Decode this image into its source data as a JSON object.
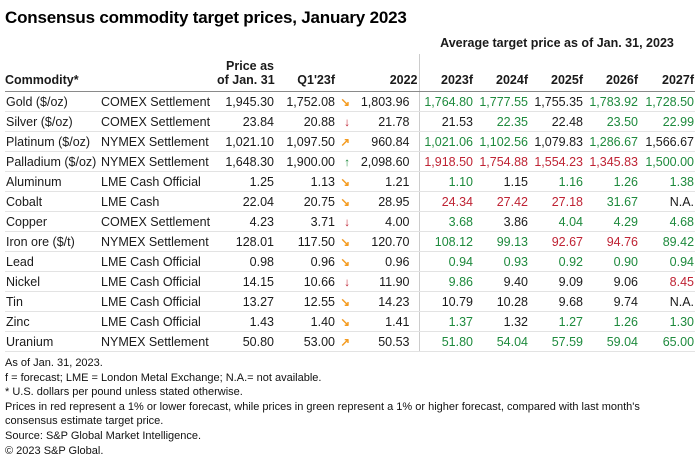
{
  "title": "Consensus commodity target prices, January 2023",
  "colors": {
    "green": "#1e8a3d",
    "red": "#bf2334",
    "orange": "#f49b1f",
    "black": "#1a1a1a",
    "header_rule": "#9b9b9b",
    "row_rule": "#e3e3e3"
  },
  "table": {
    "group_header": "Average target price as of Jan. 31, 2023",
    "commodity_header": "Commodity*",
    "price_header_line1": "Price as",
    "price_header_line2": "of Jan. 31",
    "q1_header": "Q1'23f",
    "y2022_header": "2022",
    "forecast_headers": [
      "2023f",
      "2024f",
      "2025f",
      "2026f",
      "2027f"
    ],
    "arrow_icons": {
      "down-right": {
        "name": "trend-down-right-icon",
        "glyph": "↘",
        "color": "#f49b1f"
      },
      "down": {
        "name": "trend-down-icon",
        "glyph": "↓",
        "color": "#bf2334"
      },
      "up-right": {
        "name": "trend-up-right-icon",
        "glyph": "↗",
        "color": "#f49b1f"
      },
      "up": {
        "name": "trend-up-icon",
        "glyph": "↑",
        "color": "#1e8a3d"
      }
    },
    "rows": [
      {
        "commodity": "Gold ($/oz)",
        "settlement": "COMEX Settlement",
        "price": "1,945.30",
        "q1": "1,752.08",
        "arrow": "down-right",
        "y2022": "1,803.96",
        "forecasts": [
          [
            "1,764.80",
            "green"
          ],
          [
            "1,777.55",
            "green"
          ],
          [
            "1,755.35",
            "black"
          ],
          [
            "1,783.92",
            "green"
          ],
          [
            "1,728.50",
            "green"
          ]
        ]
      },
      {
        "commodity": "Silver ($/oz)",
        "settlement": "COMEX Settlement",
        "price": "23.84",
        "q1": "20.88",
        "arrow": "down",
        "y2022": "21.78",
        "forecasts": [
          [
            "21.53",
            "black"
          ],
          [
            "22.35",
            "green"
          ],
          [
            "22.48",
            "black"
          ],
          [
            "23.50",
            "green"
          ],
          [
            "22.99",
            "green"
          ]
        ]
      },
      {
        "commodity": "Platinum ($/oz)",
        "settlement": "NYMEX Settlement",
        "price": "1,021.10",
        "q1": "1,097.50",
        "arrow": "up-right",
        "y2022": "960.84",
        "forecasts": [
          [
            "1,021.06",
            "green"
          ],
          [
            "1,102.56",
            "green"
          ],
          [
            "1,079.83",
            "black"
          ],
          [
            "1,286.67",
            "green"
          ],
          [
            "1,566.67",
            "black"
          ]
        ]
      },
      {
        "commodity": "Palladium ($/oz)",
        "settlement": "NYMEX Settlement",
        "price": "1,648.30",
        "q1": "1,900.00",
        "arrow": "up",
        "y2022": "2,098.60",
        "forecasts": [
          [
            "1,918.50",
            "red"
          ],
          [
            "1,754.88",
            "red"
          ],
          [
            "1,554.23",
            "red"
          ],
          [
            "1,345.83",
            "red"
          ],
          [
            "1,500.00",
            "green"
          ]
        ]
      },
      {
        "commodity": "Aluminum",
        "settlement": "LME Cash Official",
        "price": "1.25",
        "q1": "1.13",
        "arrow": "down-right",
        "y2022": "1.21",
        "forecasts": [
          [
            "1.10",
            "green"
          ],
          [
            "1.15",
            "black"
          ],
          [
            "1.16",
            "green"
          ],
          [
            "1.26",
            "green"
          ],
          [
            "1.38",
            "green"
          ]
        ]
      },
      {
        "commodity": "Cobalt",
        "settlement": "LME Cash",
        "price": "22.04",
        "q1": "20.75",
        "arrow": "down-right",
        "y2022": "28.95",
        "forecasts": [
          [
            "24.34",
            "red"
          ],
          [
            "27.42",
            "red"
          ],
          [
            "27.18",
            "red"
          ],
          [
            "31.67",
            "green"
          ],
          [
            "N.A.",
            "black"
          ]
        ]
      },
      {
        "commodity": "Copper",
        "settlement": "COMEX Settlement",
        "price": "4.23",
        "q1": "3.71",
        "arrow": "down",
        "y2022": "4.00",
        "forecasts": [
          [
            "3.68",
            "green"
          ],
          [
            "3.86",
            "black"
          ],
          [
            "4.04",
            "green"
          ],
          [
            "4.29",
            "green"
          ],
          [
            "4.68",
            "green"
          ]
        ]
      },
      {
        "commodity": "Iron ore ($/t)",
        "settlement": "NYMEX Settlement",
        "price": "128.01",
        "q1": "117.50",
        "arrow": "down-right",
        "y2022": "120.70",
        "forecasts": [
          [
            "108.12",
            "green"
          ],
          [
            "99.13",
            "green"
          ],
          [
            "92.67",
            "red"
          ],
          [
            "94.76",
            "red"
          ],
          [
            "89.42",
            "green"
          ]
        ]
      },
      {
        "commodity": "Lead",
        "settlement": "LME Cash Official",
        "price": "0.98",
        "q1": "0.96",
        "arrow": "down-right",
        "y2022": "0.96",
        "forecasts": [
          [
            "0.94",
            "green"
          ],
          [
            "0.93",
            "green"
          ],
          [
            "0.92",
            "green"
          ],
          [
            "0.90",
            "green"
          ],
          [
            "0.94",
            "green"
          ]
        ]
      },
      {
        "commodity": "Nickel",
        "settlement": "LME Cash Official",
        "price": "14.15",
        "q1": "10.66",
        "arrow": "down",
        "y2022": "11.90",
        "forecasts": [
          [
            "9.86",
            "green"
          ],
          [
            "9.40",
            "black"
          ],
          [
            "9.09",
            "black"
          ],
          [
            "9.06",
            "black"
          ],
          [
            "8.45",
            "red"
          ]
        ]
      },
      {
        "commodity": "Tin",
        "settlement": "LME Cash Official",
        "price": "13.27",
        "q1": "12.55",
        "arrow": "down-right",
        "y2022": "14.23",
        "forecasts": [
          [
            "10.79",
            "black"
          ],
          [
            "10.28",
            "black"
          ],
          [
            "9.68",
            "black"
          ],
          [
            "9.74",
            "black"
          ],
          [
            "N.A.",
            "black"
          ]
        ]
      },
      {
        "commodity": "Zinc",
        "settlement": "LME Cash Official",
        "price": "1.43",
        "q1": "1.40",
        "arrow": "down-right",
        "y2022": "1.41",
        "forecasts": [
          [
            "1.37",
            "green"
          ],
          [
            "1.32",
            "black"
          ],
          [
            "1.27",
            "green"
          ],
          [
            "1.26",
            "green"
          ],
          [
            "1.30",
            "green"
          ]
        ]
      },
      {
        "commodity": "Uranium",
        "settlement": "NYMEX Settlement",
        "price": "50.80",
        "q1": "53.00",
        "arrow": "up-right",
        "y2022": "50.53",
        "forecasts": [
          [
            "51.80",
            "green"
          ],
          [
            "54.04",
            "green"
          ],
          [
            "57.59",
            "green"
          ],
          [
            "59.04",
            "green"
          ],
          [
            "65.00",
            "green"
          ]
        ]
      }
    ]
  },
  "footnotes": [
    "As of Jan. 31, 2023.",
    "f = forecast; LME = London Metal Exchange; N.A.= not available.",
    "* U.S. dollars per pound unless stated otherwise.",
    "Prices in red represent a 1% or lower forecast, while prices in green represent a 1% or higher forecast, compared with last month's consensus estimate target price.",
    "Source: S&P Global Market Intelligence.",
    "© 2023 S&P Global."
  ]
}
